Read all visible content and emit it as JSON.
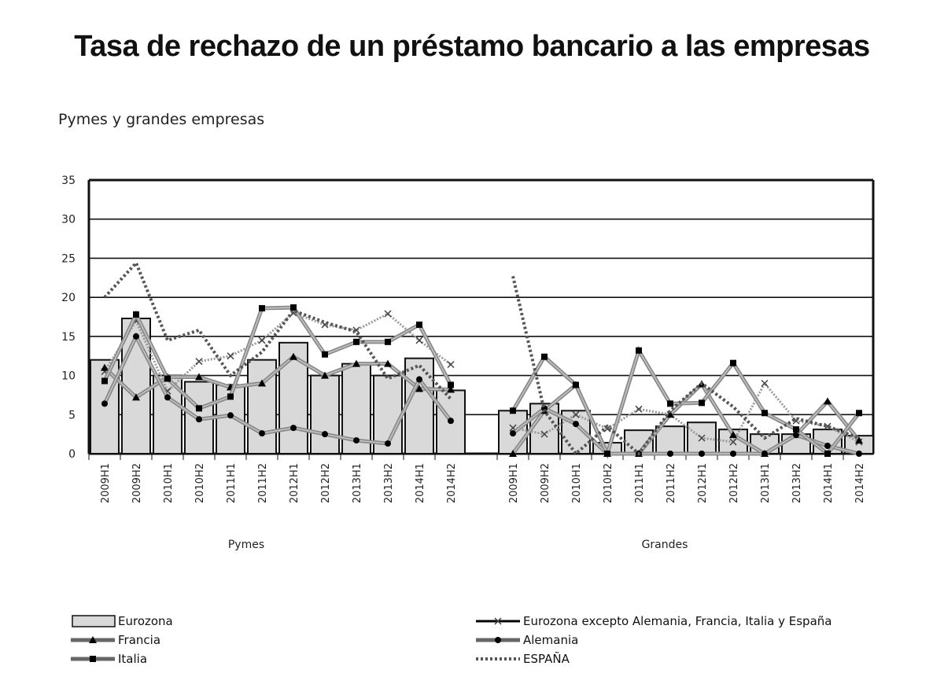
{
  "title": "Tasa de rechazo de un préstamo bancario a las empresas",
  "subtitle": "Pymes y grandes empresas",
  "chart_data": {
    "type": "bar",
    "ylim": [
      0,
      35
    ],
    "yticks": [
      0,
      5,
      10,
      15,
      20,
      25,
      30,
      35
    ],
    "grid": true,
    "legend_position": "bottom",
    "groups": [
      {
        "label": "Pymes",
        "categories": [
          "2009H1",
          "2009H2",
          "2010H1",
          "2010H2",
          "2011H1",
          "2011H2",
          "2012H1",
          "2012H2",
          "2013H1",
          "2013H2",
          "2014H1",
          "2014H2"
        ]
      },
      {
        "label": "Grandes",
        "categories": [
          "2009H1",
          "2009H2",
          "2010H1",
          "2010H2",
          "2011H1",
          "2011H2",
          "2012H1",
          "2012H2",
          "2013H1",
          "2013H2",
          "2014H1",
          "2014H2"
        ]
      }
    ],
    "series": [
      {
        "name": "Eurozona",
        "kind": "bar",
        "color": "#d9d9d9",
        "values": [
          [
            12,
            17.3,
            10,
            9.2,
            8.8,
            12,
            14.2,
            10,
            11.5,
            10,
            12.2,
            8.1
          ],
          [
            5.5,
            6.4,
            5.5,
            1.4,
            3,
            3.5,
            4,
            3.1,
            2.5,
            2.5,
            3.1,
            2.3
          ]
        ]
      },
      {
        "name": "Eurozona excepto Alemania, Francia, Italia y España",
        "kind": "line",
        "marker": "x",
        "color": "#999999",
        "values": [
          [
            10.5,
            17,
            8,
            11.8,
            12.5,
            14.5,
            18,
            16.5,
            15.8,
            17.9,
            14.5,
            11.4
          ],
          [
            3.3,
            2.5,
            5,
            3.2,
            5.7,
            5,
            2,
            1.5,
            9,
            4.2,
            3.5,
            1.5
          ]
        ]
      },
      {
        "name": "Francia",
        "kind": "line",
        "marker": "triangle",
        "color": "#8a8a8a",
        "values": [
          [
            11,
            7.2,
            9.8,
            9.8,
            8.5,
            9,
            12.4,
            10,
            11.5,
            11.5,
            8.3,
            8.2
          ],
          [
            0,
            5.5,
            8.8,
            0,
            0,
            5,
            8.9,
            2.4,
            0,
            2.4,
            6.7,
            1.7
          ]
        ]
      },
      {
        "name": "Alemania",
        "kind": "line",
        "marker": "circle",
        "color": "#8a8a8a",
        "values": [
          [
            6.4,
            15,
            7.2,
            4.4,
            4.9,
            2.6,
            3.3,
            2.5,
            1.7,
            1.3,
            9.5,
            4.2
          ],
          [
            2.6,
            5.8,
            3.8,
            0,
            0,
            0,
            0,
            0,
            0,
            2.4,
            1,
            0
          ]
        ]
      },
      {
        "name": "Italia",
        "kind": "line",
        "marker": "square",
        "color": "#8a8a8a",
        "values": [
          [
            9.3,
            17.8,
            9.6,
            5.8,
            7.3,
            18.6,
            18.7,
            12.7,
            14.3,
            14.3,
            16.5,
            8.8
          ],
          [
            5.5,
            12.4,
            8.8,
            0,
            13.2,
            6.4,
            6.5,
            11.6,
            5.2,
            3.1,
            0,
            5.2
          ]
        ]
      },
      {
        "name": "ESPAÑA",
        "kind": "line",
        "marker": "none",
        "dashed": true,
        "color": "#555555",
        "values": [
          [
            20,
            24.4,
            14.5,
            15.8,
            10,
            13,
            18.3,
            16.8,
            15.6,
            9.6,
            11.3,
            7
          ],
          [
            22.7,
            5.5,
            0,
            3.5,
            0,
            5.5,
            9,
            6,
            2,
            4.5,
            3.5,
            2
          ]
        ]
      }
    ]
  }
}
